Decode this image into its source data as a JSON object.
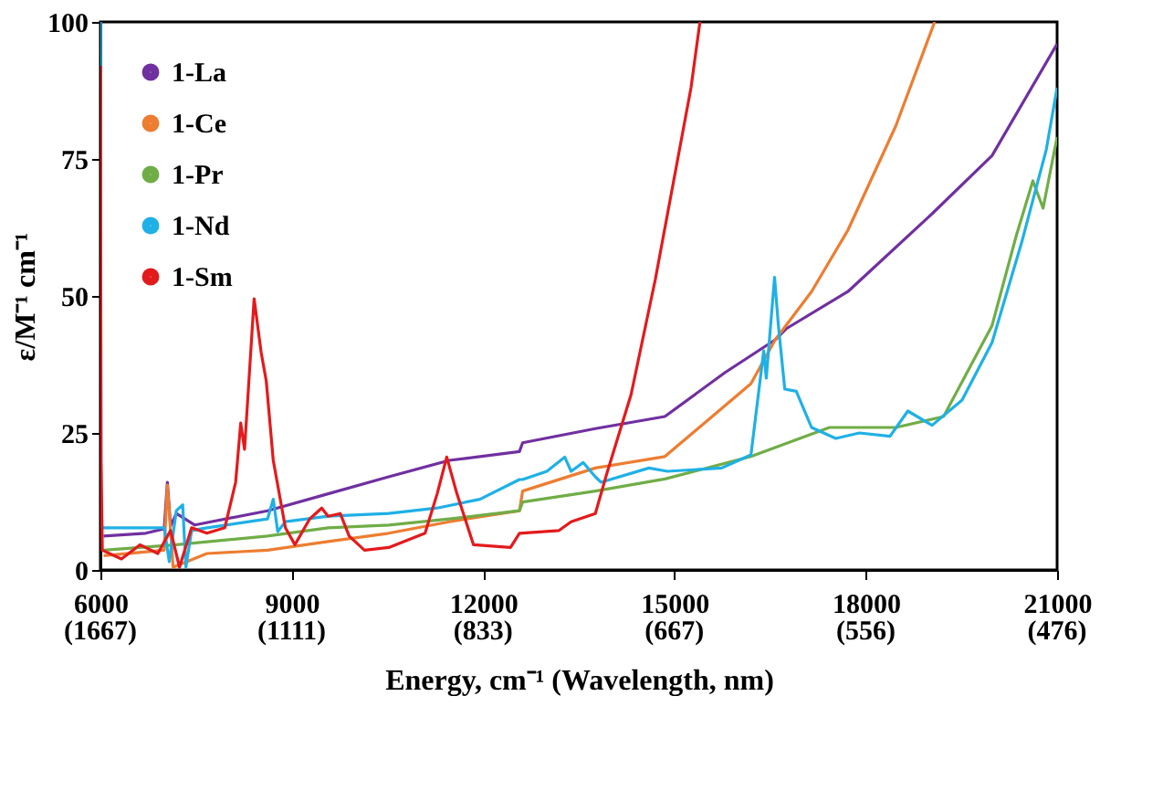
{
  "chart_data": {
    "type": "line",
    "xlabel": "Energy, cm⁻¹ (Wavelength, nm)",
    "ylabel": "ε/M⁻¹ cm⁻¹",
    "xlim": [
      6000,
      21000
    ],
    "ylim": [
      0,
      100
    ],
    "xticks": [
      6000,
      9000,
      12000,
      15000,
      18000,
      21000
    ],
    "annotations": [
      "(1667)",
      "(1111)",
      "(833)",
      "(667)",
      "(556)",
      "(476)"
    ],
    "yticks": [
      0,
      25,
      50,
      75,
      100
    ],
    "grid": false,
    "legend": "top left",
    "marker": "none",
    "line_style": "solid",
    "series": [
      {
        "name": "1-La",
        "color": "#7030a0",
        "x": [
          6050,
          6710,
          7000,
          7050,
          7100,
          7190,
          7480,
          8620,
          9570,
          10520,
          11470,
          12570,
          12620,
          13760,
          14850,
          15790,
          16580,
          16750,
          17720,
          19040,
          19980,
          21000
        ],
        "values": [
          6.2,
          6.7,
          7.5,
          16,
          8,
          10.3,
          8.2,
          10.8,
          13.9,
          17,
          20,
          21.6,
          23.2,
          25.8,
          28,
          36,
          42,
          44,
          50.8,
          65,
          75.6,
          96
        ]
      },
      {
        "name": "1-Ce",
        "color": "#ed7d31",
        "x": [
          6050,
          7000,
          7050,
          7140,
          7670,
          8620,
          9570,
          10520,
          11470,
          12570,
          12620,
          13760,
          14850,
          16200,
          16580,
          17150,
          17720,
          18470,
          19080
        ],
        "values": [
          2.6,
          3.6,
          15.5,
          0.5,
          3,
          3.6,
          5.2,
          6.7,
          8.8,
          10.8,
          14.4,
          18.6,
          20.7,
          34,
          42,
          50.8,
          62,
          81,
          100
        ]
      },
      {
        "name": "1-Pr",
        "color": "#70ad47",
        "x": [
          6050,
          7190,
          8620,
          9570,
          10520,
          11470,
          12570,
          12620,
          13760,
          14850,
          16200,
          17430,
          18470,
          19220,
          19980,
          20360,
          20620,
          20780,
          21000
        ],
        "values": [
          3.6,
          4.6,
          6.2,
          7.7,
          8.2,
          9.3,
          10.8,
          12.4,
          14.4,
          16.6,
          20.7,
          26,
          26,
          28,
          44.6,
          61,
          71,
          66,
          79
        ]
      },
      {
        "name": "1-Nd",
        "color": "#1fb0e6",
        "x": [
          6000,
          6010,
          6050,
          6710,
          7000,
          7080,
          7190,
          7290,
          7340,
          7430,
          7670,
          8620,
          8710,
          8780,
          8900,
          9570,
          10520,
          11280,
          11950,
          12570,
          12620,
          13000,
          13280,
          13380,
          13570,
          13760,
          13850,
          14600,
          14890,
          15740,
          16200,
          16400,
          16440,
          16570,
          16630,
          16730,
          16910,
          17150,
          17530,
          17900,
          18380,
          18660,
          19040,
          19510,
          19980,
          20450,
          20830,
          21000
        ],
        "values": [
          100,
          8,
          7.7,
          7.7,
          7.7,
          1.5,
          10.8,
          11.9,
          0.5,
          7.2,
          7.7,
          9.3,
          12.9,
          7,
          8.8,
          9.8,
          10.3,
          11.3,
          12.9,
          16.5,
          16.5,
          18,
          20.6,
          18,
          19.6,
          17,
          16,
          18.6,
          18,
          18.6,
          21,
          40,
          35,
          53.4,
          44.6,
          33,
          32.6,
          26,
          24,
          25,
          24.4,
          29,
          26.4,
          31,
          41.5,
          60,
          76.7,
          88
        ]
      },
      {
        "name": "1-Sm",
        "color": "#e31a1c",
        "x": [
          6000,
          6010,
          6030,
          6330,
          6620,
          6900,
          7100,
          7240,
          7430,
          7670,
          7950,
          8120,
          8200,
          8260,
          8410,
          8520,
          8600,
          8710,
          8900,
          9050,
          9280,
          9470,
          9570,
          9760,
          9900,
          10140,
          10520,
          11090,
          11280,
          11430,
          11590,
          11850,
          12430,
          12570,
          13190,
          13380,
          13760,
          13940,
          14320,
          14700,
          14980,
          15260,
          15400
        ],
        "values": [
          92,
          20,
          3.6,
          2,
          4.6,
          3,
          7.2,
          0.5,
          7.7,
          6.7,
          7.7,
          16,
          26.8,
          22,
          49.5,
          39.7,
          34.5,
          20,
          7.7,
          4.6,
          9.3,
          11.3,
          9.8,
          10.3,
          6.2,
          3.6,
          4.1,
          6.7,
          13.9,
          20.6,
          13.9,
          4.6,
          4.1,
          6.7,
          7.2,
          8.8,
          10.3,
          17.6,
          32,
          53,
          70.5,
          88,
          100
        ]
      }
    ]
  }
}
